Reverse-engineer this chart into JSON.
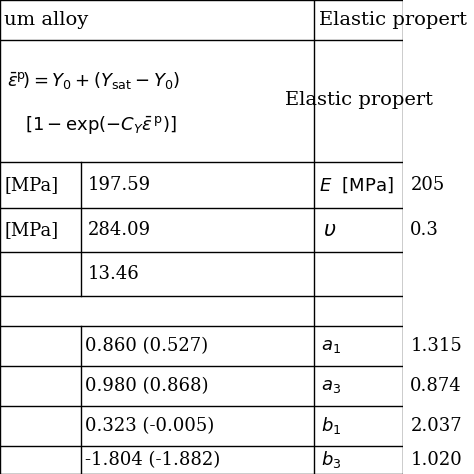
{
  "bg_color": "#ffffff",
  "line_color": "#000000",
  "text_color": "#000000",
  "font_size": 13,
  "title_row": {
    "left": "um alloy",
    "right": "Elastic propert"
  },
  "formula_lines": [
    "$\\left.\\bar{\\varepsilon}^{\\mathrm{p}}\\right) = Y_0 + \\left(Y_{\\mathrm{sat}} - Y_0\\right)$",
    "$\\left[1 - \\exp\\left(-C_Y \\bar{\\varepsilon}^{\\mathrm{p}}\\right)\\right]$"
  ],
  "mid_rows": [
    [
      "[MPa]",
      "197.59",
      "$E$  [MPa]",
      "205"
    ],
    [
      "[MPa]",
      "284.09",
      "$\\upsilon$",
      "0.3"
    ],
    [
      "",
      "13.46",
      "",
      ""
    ]
  ],
  "bottom_rows": [
    [
      "",
      "0.860 (0.527)",
      "$a_1$",
      "1.315"
    ],
    [
      "",
      "0.980 (0.868)",
      "$a_3$",
      "0.874"
    ],
    [
      "",
      "0.323 (-0.005)",
      "$b_1$",
      "2.037"
    ],
    [
      "",
      "-1.804 (-1.882)",
      "$b_3$",
      "1.020"
    ]
  ]
}
